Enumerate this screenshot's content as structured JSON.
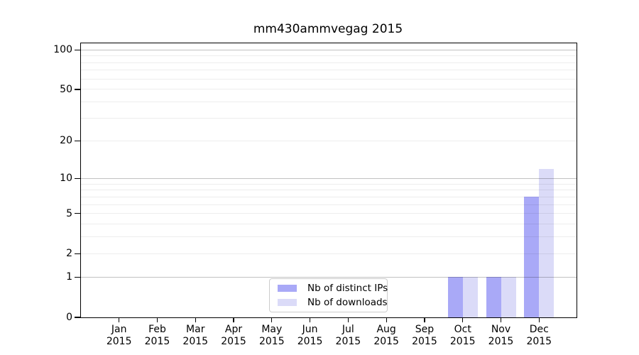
{
  "chart_data": {
    "type": "bar",
    "title": "mm430ammvegag 2015",
    "categories": [
      "Jan",
      "Feb",
      "Mar",
      "Apr",
      "May",
      "Jun",
      "Jul",
      "Aug",
      "Sep",
      "Oct",
      "Nov",
      "Dec"
    ],
    "year_label": "2015",
    "series": [
      {
        "name": "Nb of distinct IPs",
        "color": "#a9a9f7",
        "values": [
          0,
          0,
          0,
          0,
          0,
          0,
          0,
          0,
          0,
          1,
          1,
          7
        ]
      },
      {
        "name": "Nb of downloads",
        "color": "#dbdbf8",
        "values": [
          0,
          0,
          0,
          0,
          0,
          0,
          0,
          0,
          0,
          1,
          1,
          12
        ]
      }
    ],
    "xlabel": "",
    "ylabel": "",
    "yscale": "log10(value+1)",
    "yticks": [
      0,
      1,
      2,
      5,
      10,
      20,
      50,
      100
    ],
    "ylim": [
      0,
      112
    ],
    "gridlines": {
      "major": [
        1,
        10,
        100
      ],
      "minor": [
        2,
        3,
        4,
        5,
        6,
        7,
        8,
        9,
        20,
        30,
        40,
        50,
        60,
        70,
        80,
        90
      ]
    },
    "grid_on": true,
    "legend_position": "bottom-center",
    "colors": {
      "axis": "#000000",
      "major_grid": "#bdbdbd",
      "minor_grid": "#ededed",
      "legend_border": "#cccccc"
    }
  }
}
